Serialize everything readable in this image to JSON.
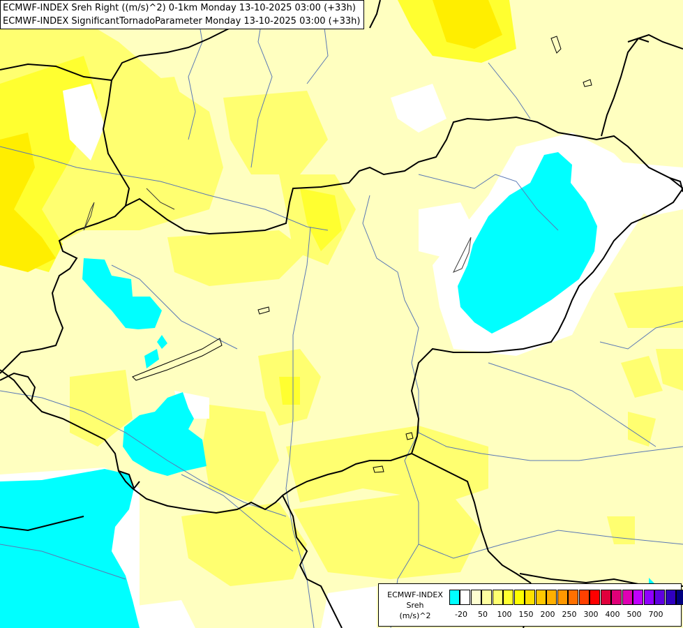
{
  "titles": {
    "line1": "ECMWF-INDEX Sreh Right ((m/s)^2) 0-1km Monday 13-10-2025 03:00 (+33h)",
    "line2": "ECMWF-INDEX SignificantTornadoParameter Monday 13-10-2025 03:00 (+33h)"
  },
  "legend": {
    "label_line1": "ECMWF-INDEX",
    "label_line2": "Sreh",
    "label_line3": "(m/s)^2",
    "colors": [
      "#00ffff",
      "#ffffff",
      "#ffffd0",
      "#ffffa0",
      "#ffff70",
      "#ffff30",
      "#ffff00",
      "#ffe000",
      "#ffc800",
      "#ffb000",
      "#ff9800",
      "#ff7000",
      "#ff4000",
      "#ff0000",
      "#e0003c",
      "#e00078",
      "#e000b4",
      "#c000ff",
      "#9000ff",
      "#6000e0",
      "#3000c0",
      "#000080"
    ],
    "ticks": [
      "-20",
      "50",
      "100",
      "150",
      "200",
      "250",
      "300",
      "400",
      "500",
      "700"
    ]
  },
  "palette": {
    "background": "#ffffc0",
    "light_yellow": "#ffffa0",
    "yellow": "#ffff70",
    "bright_yellow": "#ffff30",
    "gold": "#ffee00",
    "cyan": "#00ffff",
    "white": "#ffffff",
    "border": "#000000",
    "river": "#5a78b4"
  }
}
